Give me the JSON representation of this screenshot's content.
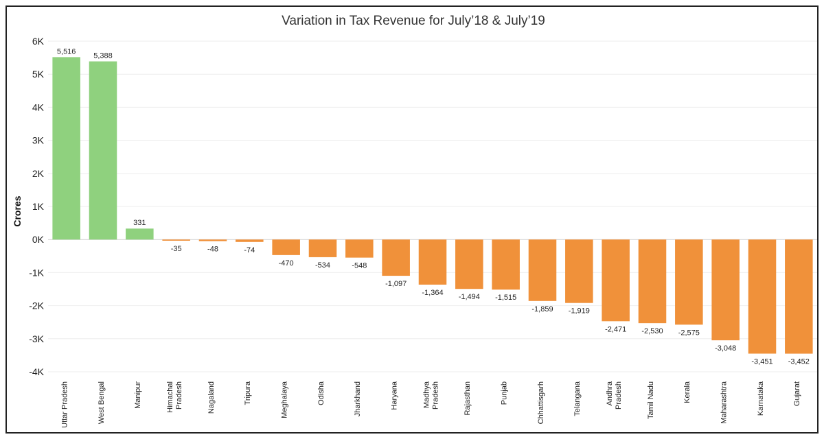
{
  "chart_data": {
    "type": "bar",
    "title": "Variation in Tax Revenue for July’18 & July’19",
    "ylabel": "Crores",
    "xlabel": "",
    "ylim": [
      -4000,
      6000
    ],
    "yticks": [
      6000,
      5000,
      4000,
      3000,
      2000,
      1000,
      0,
      -1000,
      -2000,
      -3000,
      -4000
    ],
    "ytick_labels": [
      "6K",
      "5K",
      "4K",
      "3K",
      "2K",
      "1K",
      "0K",
      "-1K",
      "-2K",
      "-3K",
      "-4K"
    ],
    "categories": [
      [
        "Uttar Pradesh"
      ],
      [
        "West Bengal"
      ],
      [
        "Manipur"
      ],
      [
        "Himachal",
        "Pradesh"
      ],
      [
        "Nagaland"
      ],
      [
        "Tripura"
      ],
      [
        "Meghalaya"
      ],
      [
        "Odisha"
      ],
      [
        "Jharkhand"
      ],
      [
        "Haryana"
      ],
      [
        "Madhya",
        "Pradesh"
      ],
      [
        "Rajasthan"
      ],
      [
        "Punjab"
      ],
      [
        "Chhattisgarh"
      ],
      [
        "Telangana"
      ],
      [
        "Andhra",
        "Pradesh"
      ],
      [
        "Tamil Nadu"
      ],
      [
        "Kerala"
      ],
      [
        "Maharashtra"
      ],
      [
        "Karnataka"
      ],
      [
        "Gujarat"
      ]
    ],
    "values": [
      5516,
      5388,
      331,
      -35,
      -48,
      -74,
      -470,
      -534,
      -548,
      -1097,
      -1364,
      -1494,
      -1515,
      -1859,
      -1919,
      -2471,
      -2530,
      -2575,
      -3048,
      -3451,
      -3452
    ],
    "value_labels": [
      "5,516",
      "5,388",
      "331",
      "-35",
      "-48",
      "-74",
      "-470",
      "-534",
      "-548",
      "-1,097",
      "-1,364",
      "-1,494",
      "-1,515",
      "-1,859",
      "-1,919",
      "-2,471",
      "-2,530",
      "-2,575",
      "-3,048",
      "-3,451",
      "-3,452"
    ],
    "colors": {
      "positive": "#8fd17e",
      "negative": "#f0913a"
    },
    "grid": true,
    "legend": "none"
  }
}
